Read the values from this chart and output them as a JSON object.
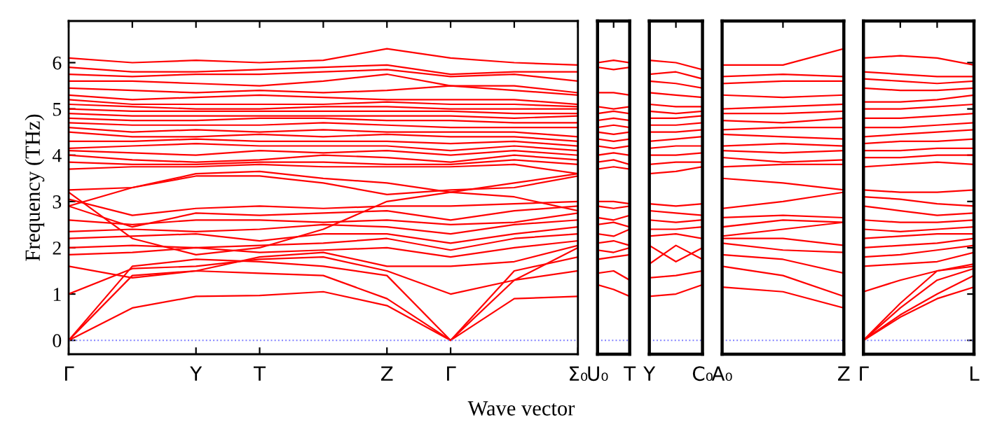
{
  "chart_data": [
    {
      "type": "line",
      "ylabel": "Frequency (THz)",
      "xlabel": "Wave vector",
      "line_style": "solid",
      "marker": "none",
      "categories": [
        "Γ",
        null,
        "Y",
        "T",
        null,
        "Z",
        "Γ",
        null,
        "Σ₀"
      ],
      "ylim": [
        -0.3,
        6.9
      ],
      "yticks": [
        0,
        1,
        2,
        3,
        4,
        5,
        6
      ],
      "ref_lines": [
        {
          "axis": "y",
          "value": 0,
          "color": "#7f7fff",
          "line_style": "dotted"
        }
      ],
      "series": [
        {
          "color": "#ff0000",
          "values": [
            0,
            0.7,
            0.95,
            0.97,
            1.05,
            0.75,
            0,
            0.9,
            0.95
          ]
        },
        {
          "color": "#ff0000",
          "values": [
            0,
            1.4,
            1.5,
            1.45,
            1.4,
            0.9,
            0,
            1.3,
            1.5
          ]
        },
        {
          "color": "#ff0000",
          "values": [
            0,
            1.6,
            1.75,
            1.7,
            1.6,
            1.4,
            0,
            1.5,
            1.8
          ]
        },
        {
          "color": "#ff0000",
          "values": [
            1.0,
            1.55,
            1.6,
            1.75,
            1.8,
            1.5,
            1.0,
            1.3,
            2.0
          ]
        },
        {
          "color": "#ff0000",
          "values": [
            1.6,
            1.35,
            1.5,
            1.8,
            1.9,
            1.6,
            1.6,
            1.7,
            2.05
          ]
        },
        {
          "color": "#ff0000",
          "values": [
            1.85,
            1.9,
            2.0,
            1.9,
            1.95,
            2.0,
            1.8,
            2.0,
            2.15
          ]
        },
        {
          "color": "#ff0000",
          "values": [
            2.0,
            2.05,
            2.0,
            2.05,
            2.1,
            2.2,
            1.95,
            2.2,
            2.3
          ]
        },
        {
          "color": "#ff0000",
          "values": [
            2.2,
            2.25,
            2.3,
            2.15,
            2.3,
            2.3,
            2.1,
            2.3,
            2.45
          ]
        },
        {
          "color": "#ff0000",
          "values": [
            2.35,
            2.4,
            2.35,
            2.4,
            2.5,
            2.45,
            2.3,
            2.5,
            2.6
          ]
        },
        {
          "color": "#ff0000",
          "values": [
            2.6,
            2.5,
            2.6,
            2.6,
            2.55,
            2.6,
            2.5,
            2.55,
            2.75
          ]
        },
        {
          "color": "#ff0000",
          "values": [
            2.9,
            2.45,
            2.75,
            2.7,
            2.75,
            2.8,
            2.6,
            2.8,
            2.9
          ]
        },
        {
          "color": "#ff0000",
          "values": [
            3.05,
            2.7,
            2.85,
            2.9,
            2.85,
            2.9,
            2.9,
            2.95,
            3.0
          ]
        },
        {
          "color": "#ff0000",
          "values": [
            3.2,
            2.2,
            1.85,
            2.0,
            2.4,
            3.0,
            3.2,
            3.1,
            2.8
          ]
        },
        {
          "color": "#ff0000",
          "values": [
            3.25,
            3.3,
            3.55,
            3.55,
            3.4,
            3.15,
            3.25,
            3.3,
            3.55
          ]
        },
        {
          "color": "#ff0000",
          "values": [
            2.9,
            3.3,
            3.6,
            3.65,
            3.5,
            3.4,
            3.2,
            3.4,
            3.6
          ]
        },
        {
          "color": "#ff0000",
          "values": [
            3.7,
            3.75,
            3.75,
            3.8,
            3.75,
            3.75,
            3.75,
            3.8,
            3.6
          ]
        },
        {
          "color": "#ff0000",
          "values": [
            3.85,
            3.8,
            3.8,
            3.85,
            3.85,
            3.8,
            3.8,
            3.9,
            3.8
          ]
        },
        {
          "color": "#ff0000",
          "values": [
            4.0,
            3.9,
            3.85,
            3.9,
            4.0,
            3.95,
            3.85,
            4.0,
            3.9
          ]
        },
        {
          "color": "#ff0000",
          "values": [
            4.1,
            4.05,
            4.0,
            4.1,
            4.05,
            4.1,
            4.0,
            4.1,
            4.0
          ]
        },
        {
          "color": "#ff0000",
          "values": [
            4.15,
            4.2,
            4.25,
            4.2,
            4.2,
            4.2,
            4.1,
            4.2,
            4.1
          ]
        },
        {
          "color": "#ff0000",
          "values": [
            4.3,
            4.3,
            4.35,
            4.3,
            4.3,
            4.3,
            4.25,
            4.3,
            4.2
          ]
        },
        {
          "color": "#ff0000",
          "values": [
            4.5,
            4.4,
            4.4,
            4.45,
            4.4,
            4.45,
            4.4,
            4.4,
            4.3
          ]
        },
        {
          "color": "#ff0000",
          "values": [
            4.6,
            4.5,
            4.55,
            4.5,
            4.55,
            4.5,
            4.5,
            4.5,
            4.4
          ]
        },
        {
          "color": "#ff0000",
          "values": [
            4.7,
            4.65,
            4.65,
            4.65,
            4.7,
            4.65,
            4.6,
            4.6,
            4.6
          ]
        },
        {
          "color": "#ff0000",
          "values": [
            4.8,
            4.75,
            4.75,
            4.8,
            4.8,
            4.75,
            4.75,
            4.7,
            4.7
          ]
        },
        {
          "color": "#ff0000",
          "values": [
            4.9,
            4.85,
            4.85,
            4.85,
            4.85,
            4.85,
            4.85,
            4.8,
            4.85
          ]
        },
        {
          "color": "#ff0000",
          "values": [
            5.0,
            4.95,
            4.95,
            4.95,
            4.95,
            4.95,
            4.95,
            4.9,
            4.9
          ]
        },
        {
          "color": "#ff0000",
          "values": [
            5.1,
            5.05,
            5.0,
            5.0,
            5.05,
            5.05,
            5.0,
            5.0,
            5.0
          ]
        },
        {
          "color": "#ff0000",
          "values": [
            5.2,
            5.1,
            5.1,
            5.1,
            5.1,
            5.15,
            5.1,
            5.1,
            5.05
          ]
        },
        {
          "color": "#ff0000",
          "values": [
            5.3,
            5.2,
            5.25,
            5.3,
            5.25,
            5.2,
            5.2,
            5.2,
            5.1
          ]
        },
        {
          "color": "#ff0000",
          "values": [
            5.45,
            5.4,
            5.35,
            5.4,
            5.35,
            5.4,
            5.5,
            5.4,
            5.3
          ]
        },
        {
          "color": "#ff0000",
          "values": [
            5.6,
            5.6,
            5.55,
            5.5,
            5.6,
            5.75,
            5.5,
            5.5,
            5.35
          ]
        },
        {
          "color": "#ff0000",
          "values": [
            5.75,
            5.7,
            5.75,
            5.75,
            5.8,
            5.85,
            5.7,
            5.75,
            5.6
          ]
        },
        {
          "color": "#ff0000",
          "values": [
            5.9,
            5.8,
            5.8,
            5.85,
            5.9,
            5.95,
            5.75,
            5.8,
            5.8
          ]
        },
        {
          "color": "#ff0000",
          "values": [
            6.1,
            6.0,
            6.05,
            6.0,
            6.05,
            6.3,
            6.1,
            6.0,
            5.95
          ]
        }
      ]
    },
    {
      "type": "line",
      "line_style": "solid",
      "marker": "none",
      "tick_labels": "x",
      "categories": [
        "U₀",
        null,
        "T"
      ],
      "ylim": [
        -0.3,
        6.9
      ],
      "yticks": [
        0,
        1,
        2,
        3,
        4,
        5,
        6
      ],
      "ref_lines": [
        {
          "axis": "y",
          "value": 0,
          "color": "#7f7fff",
          "line_style": "dotted"
        }
      ],
      "series": [
        {
          "color": "#ff0000",
          "values": [
            1.2,
            1.1,
            0.95
          ]
        },
        {
          "color": "#ff0000",
          "values": [
            1.45,
            1.5,
            1.3
          ]
        },
        {
          "color": "#ff0000",
          "values": [
            1.75,
            1.8,
            1.85
          ]
        },
        {
          "color": "#ff0000",
          "values": [
            1.95,
            1.9,
            2.0
          ]
        },
        {
          "color": "#ff0000",
          "values": [
            2.1,
            2.15,
            2.05
          ]
        },
        {
          "color": "#ff0000",
          "values": [
            2.3,
            2.25,
            2.4
          ]
        },
        {
          "color": "#ff0000",
          "values": [
            2.5,
            2.55,
            2.45
          ]
        },
        {
          "color": "#ff0000",
          "values": [
            2.65,
            2.6,
            2.7
          ]
        },
        {
          "color": "#ff0000",
          "values": [
            2.9,
            2.85,
            2.9
          ]
        },
        {
          "color": "#ff0000",
          "values": [
            3.0,
            3.0,
            2.95
          ]
        },
        {
          "color": "#ff0000",
          "values": [
            3.7,
            3.75,
            3.7
          ]
        },
        {
          "color": "#ff0000",
          "values": [
            3.85,
            3.9,
            3.8
          ]
        },
        {
          "color": "#ff0000",
          "values": [
            4.0,
            4.05,
            4.0
          ]
        },
        {
          "color": "#ff0000",
          "values": [
            4.2,
            4.15,
            4.2
          ]
        },
        {
          "color": "#ff0000",
          "values": [
            4.35,
            4.3,
            4.35
          ]
        },
        {
          "color": "#ff0000",
          "values": [
            4.5,
            4.45,
            4.5
          ]
        },
        {
          "color": "#ff0000",
          "values": [
            4.6,
            4.65,
            4.6
          ]
        },
        {
          "color": "#ff0000",
          "values": [
            4.75,
            4.8,
            4.75
          ]
        },
        {
          "color": "#ff0000",
          "values": [
            4.9,
            4.95,
            4.9
          ]
        },
        {
          "color": "#ff0000",
          "values": [
            5.05,
            5.0,
            5.05
          ]
        },
        {
          "color": "#ff0000",
          "values": [
            5.35,
            5.35,
            5.3
          ]
        },
        {
          "color": "#ff0000",
          "values": [
            5.9,
            5.85,
            5.9
          ]
        },
        {
          "color": "#ff0000",
          "values": [
            6.0,
            6.05,
            6.0
          ]
        }
      ]
    },
    {
      "type": "line",
      "line_style": "solid",
      "marker": "none",
      "tick_labels": "x",
      "categories": [
        "Y",
        null,
        "C₀"
      ],
      "ylim": [
        -0.3,
        6.9
      ],
      "yticks": [
        0,
        1,
        2,
        3,
        4,
        5,
        6
      ],
      "ref_lines": [
        {
          "axis": "y",
          "value": 0,
          "color": "#7f7fff",
          "line_style": "dotted"
        }
      ],
      "series": [
        {
          "color": "#ff0000",
          "values": [
            0.95,
            1.0,
            1.2
          ]
        },
        {
          "color": "#ff0000",
          "values": [
            1.35,
            1.4,
            1.5
          ]
        },
        {
          "color": "#ff0000",
          "values": [
            1.65,
            2.05,
            1.75
          ]
        },
        {
          "color": "#ff0000",
          "values": [
            2.05,
            1.7,
            2.0
          ]
        },
        {
          "color": "#ff0000",
          "values": [
            2.25,
            2.3,
            2.2
          ]
        },
        {
          "color": "#ff0000",
          "values": [
            2.4,
            2.4,
            2.45
          ]
        },
        {
          "color": "#ff0000",
          "values": [
            2.6,
            2.55,
            2.6
          ]
        },
        {
          "color": "#ff0000",
          "values": [
            2.8,
            2.75,
            2.7
          ]
        },
        {
          "color": "#ff0000",
          "values": [
            2.95,
            2.9,
            2.95
          ]
        },
        {
          "color": "#ff0000",
          "values": [
            3.6,
            3.65,
            3.75
          ]
        },
        {
          "color": "#ff0000",
          "values": [
            3.8,
            3.85,
            3.85
          ]
        },
        {
          "color": "#ff0000",
          "values": [
            4.0,
            4.0,
            4.05
          ]
        },
        {
          "color": "#ff0000",
          "values": [
            4.15,
            4.2,
            4.2
          ]
        },
        {
          "color": "#ff0000",
          "values": [
            4.3,
            4.35,
            4.4
          ]
        },
        {
          "color": "#ff0000",
          "values": [
            4.5,
            4.5,
            4.55
          ]
        },
        {
          "color": "#ff0000",
          "values": [
            4.65,
            4.65,
            4.7
          ]
        },
        {
          "color": "#ff0000",
          "values": [
            4.8,
            4.8,
            4.85
          ]
        },
        {
          "color": "#ff0000",
          "values": [
            4.95,
            4.9,
            4.95
          ]
        },
        {
          "color": "#ff0000",
          "values": [
            5.1,
            5.05,
            5.05
          ]
        },
        {
          "color": "#ff0000",
          "values": [
            5.35,
            5.3,
            5.25
          ]
        },
        {
          "color": "#ff0000",
          "values": [
            5.6,
            5.55,
            5.45
          ]
        },
        {
          "color": "#ff0000",
          "values": [
            5.75,
            5.8,
            5.65
          ]
        },
        {
          "color": "#ff0000",
          "values": [
            6.05,
            6.0,
            5.85
          ]
        }
      ]
    },
    {
      "type": "line",
      "line_style": "solid",
      "marker": "none",
      "tick_labels": "x",
      "categories": [
        "A₀",
        null,
        "Z"
      ],
      "ylim": [
        -0.3,
        6.9
      ],
      "yticks": [
        0,
        1,
        2,
        3,
        4,
        5,
        6
      ],
      "ref_lines": [
        {
          "axis": "y",
          "value": 0,
          "color": "#7f7fff",
          "line_style": "dotted"
        }
      ],
      "series": [
        {
          "color": "#ff0000",
          "values": [
            1.15,
            1.05,
            0.7
          ]
        },
        {
          "color": "#ff0000",
          "values": [
            1.6,
            1.4,
            0.95
          ]
        },
        {
          "color": "#ff0000",
          "values": [
            1.85,
            1.75,
            1.45
          ]
        },
        {
          "color": "#ff0000",
          "values": [
            2.1,
            1.95,
            1.9
          ]
        },
        {
          "color": "#ff0000",
          "values": [
            2.2,
            2.2,
            2.05
          ]
        },
        {
          "color": "#ff0000",
          "values": [
            2.25,
            2.4,
            2.55
          ]
        },
        {
          "color": "#ff0000",
          "values": [
            2.45,
            2.6,
            2.55
          ]
        },
        {
          "color": "#ff0000",
          "values": [
            2.65,
            2.7,
            2.65
          ]
        },
        {
          "color": "#ff0000",
          "values": [
            2.85,
            3.0,
            3.2
          ]
        },
        {
          "color": "#ff0000",
          "values": [
            3.5,
            3.4,
            3.25
          ]
        },
        {
          "color": "#ff0000",
          "values": [
            3.75,
            3.8,
            3.8
          ]
        },
        {
          "color": "#ff0000",
          "values": [
            3.95,
            3.85,
            3.9
          ]
        },
        {
          "color": "#ff0000",
          "values": [
            4.1,
            4.05,
            4.1
          ]
        },
        {
          "color": "#ff0000",
          "values": [
            4.2,
            4.25,
            4.2
          ]
        },
        {
          "color": "#ff0000",
          "values": [
            4.45,
            4.4,
            4.35
          ]
        },
        {
          "color": "#ff0000",
          "values": [
            4.55,
            4.6,
            4.6
          ]
        },
        {
          "color": "#ff0000",
          "values": [
            4.75,
            4.7,
            4.8
          ]
        },
        {
          "color": "#ff0000",
          "values": [
            4.9,
            4.9,
            4.95
          ]
        },
        {
          "color": "#ff0000",
          "values": [
            5.0,
            5.05,
            5.1
          ]
        },
        {
          "color": "#ff0000",
          "values": [
            5.3,
            5.25,
            5.3
          ]
        },
        {
          "color": "#ff0000",
          "values": [
            5.55,
            5.6,
            5.6
          ]
        },
        {
          "color": "#ff0000",
          "values": [
            5.7,
            5.75,
            5.7
          ]
        },
        {
          "color": "#ff0000",
          "values": [
            5.95,
            5.95,
            6.3
          ]
        }
      ]
    },
    {
      "type": "line",
      "line_style": "solid",
      "marker": "none",
      "tick_labels": "x",
      "categories": [
        "Γ",
        null,
        null,
        "L"
      ],
      "ylim": [
        -0.3,
        6.9
      ],
      "yticks": [
        0,
        1,
        2,
        3,
        4,
        5,
        6
      ],
      "ref_lines": [
        {
          "axis": "y",
          "value": 0,
          "color": "#7f7fff",
          "line_style": "dotted"
        }
      ],
      "series": [
        {
          "color": "#ff0000",
          "values": [
            0,
            0.5,
            0.9,
            1.15
          ]
        },
        {
          "color": "#ff0000",
          "values": [
            0,
            0.55,
            1.0,
            1.4
          ]
        },
        {
          "color": "#ff0000",
          "values": [
            0,
            0.7,
            1.3,
            1.55
          ]
        },
        {
          "color": "#ff0000",
          "values": [
            0,
            0.8,
            1.5,
            1.6
          ]
        },
        {
          "color": "#ff0000",
          "values": [
            1.05,
            1.3,
            1.5,
            1.65
          ]
        },
        {
          "color": "#ff0000",
          "values": [
            1.6,
            1.65,
            1.7,
            1.9
          ]
        },
        {
          "color": "#ff0000",
          "values": [
            1.8,
            1.85,
            1.95,
            2.05
          ]
        },
        {
          "color": "#ff0000",
          "values": [
            2.0,
            2.05,
            2.1,
            2.2
          ]
        },
        {
          "color": "#ff0000",
          "values": [
            2.2,
            2.25,
            2.3,
            2.3
          ]
        },
        {
          "color": "#ff0000",
          "values": [
            2.4,
            2.35,
            2.4,
            2.45
          ]
        },
        {
          "color": "#ff0000",
          "values": [
            2.6,
            2.55,
            2.55,
            2.6
          ]
        },
        {
          "color": "#ff0000",
          "values": [
            2.9,
            2.8,
            2.7,
            2.75
          ]
        },
        {
          "color": "#ff0000",
          "values": [
            3.1,
            3.05,
            2.95,
            2.9
          ]
        },
        {
          "color": "#ff0000",
          "values": [
            3.25,
            3.2,
            3.2,
            3.25
          ]
        },
        {
          "color": "#ff0000",
          "values": [
            3.75,
            3.8,
            3.85,
            3.8
          ]
        },
        {
          "color": "#ff0000",
          "values": [
            3.95,
            3.95,
            4.0,
            4.0
          ]
        },
        {
          "color": "#ff0000",
          "values": [
            4.1,
            4.1,
            4.15,
            4.15
          ]
        },
        {
          "color": "#ff0000",
          "values": [
            4.25,
            4.3,
            4.3,
            4.35
          ]
        },
        {
          "color": "#ff0000",
          "values": [
            4.4,
            4.45,
            4.5,
            4.55
          ]
        },
        {
          "color": "#ff0000",
          "values": [
            4.6,
            4.6,
            4.65,
            4.7
          ]
        },
        {
          "color": "#ff0000",
          "values": [
            4.8,
            4.8,
            4.85,
            4.9
          ]
        },
        {
          "color": "#ff0000",
          "values": [
            5.0,
            5.0,
            5.05,
            5.1
          ]
        },
        {
          "color": "#ff0000",
          "values": [
            5.15,
            5.15,
            5.2,
            5.3
          ]
        },
        {
          "color": "#ff0000",
          "values": [
            5.45,
            5.4,
            5.4,
            5.45
          ]
        },
        {
          "color": "#ff0000",
          "values": [
            5.65,
            5.6,
            5.55,
            5.6
          ]
        },
        {
          "color": "#ff0000",
          "values": [
            5.8,
            5.75,
            5.7,
            5.7
          ]
        },
        {
          "color": "#ff0000",
          "values": [
            6.1,
            6.15,
            6.1,
            5.95
          ]
        }
      ]
    }
  ]
}
